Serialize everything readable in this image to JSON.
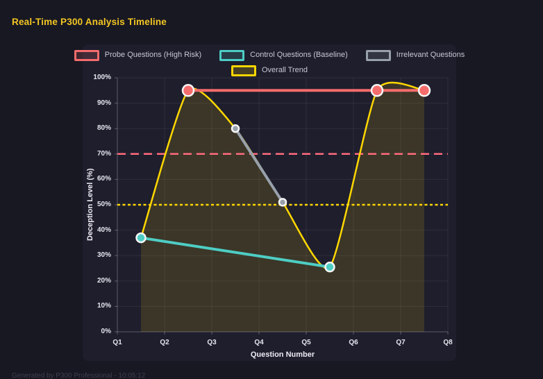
{
  "page": {
    "title": "Real-Time P300 Analysis Timeline",
    "footer": "Generated by P300 Professional - 10:05:12"
  },
  "colors": {
    "page_background": "#181823",
    "panel_background": "#1e1e2d",
    "title_accent": "#f3c622",
    "probe": "#f56c6c",
    "control": "#4ecdc4",
    "irrelevant": "#98a0aa",
    "trend": "#ffd700",
    "threshold_high": "#ff6b7d",
    "threshold_mid": "#ffd700",
    "point_border": "#f5f5f5"
  },
  "chart_data": {
    "type": "line",
    "title": "Real-Time P300 Analysis Timeline",
    "xlabel": "Question Number",
    "ylabel": "Deception Level (%)",
    "xlim": [
      1,
      8
    ],
    "ylim": [
      0,
      100
    ],
    "grid": true,
    "grid_color": "rgba(255,255,255,0.07)",
    "axis_color": "rgba(255,255,255,0.28)",
    "legend_position": "top",
    "legend_rows": [
      [
        0,
        1,
        2
      ],
      [
        3
      ]
    ],
    "x_ticks": [
      {
        "label": "Q1",
        "value": 1
      },
      {
        "label": "Q2",
        "value": 2
      },
      {
        "label": "Q3",
        "value": 3
      },
      {
        "label": "Q4",
        "value": 4
      },
      {
        "label": "Q5",
        "value": 5
      },
      {
        "label": "Q6",
        "value": 6
      },
      {
        "label": "Q7",
        "value": 7
      },
      {
        "label": "Q8",
        "value": 8
      }
    ],
    "y_ticks": [
      {
        "label": "0%",
        "value": 0
      },
      {
        "label": "10%",
        "value": 10
      },
      {
        "label": "20%",
        "value": 20
      },
      {
        "label": "30%",
        "value": 30
      },
      {
        "label": "40%",
        "value": 40
      },
      {
        "label": "50%",
        "value": 50
      },
      {
        "label": "60%",
        "value": 60
      },
      {
        "label": "70%",
        "value": 70
      },
      {
        "label": "80%",
        "value": 80
      },
      {
        "label": "90%",
        "value": 90
      },
      {
        "label": "100%",
        "value": 100
      }
    ],
    "series": [
      {
        "name": "Probe Questions (High Risk)",
        "color": "#f56c6c",
        "line_width": 4,
        "point_radius": 8,
        "smooth": false,
        "fill": false,
        "points": [
          [
            2.5,
            95
          ],
          [
            6.5,
            95
          ],
          [
            7.5,
            95
          ]
        ]
      },
      {
        "name": "Control Questions (Baseline)",
        "color": "#4ecdc4",
        "line_width": 4,
        "point_radius": 6.5,
        "smooth": false,
        "fill": false,
        "points": [
          [
            1.5,
            37
          ],
          [
            5.5,
            25.5
          ]
        ]
      },
      {
        "name": "Irrelevant Questions",
        "color": "#98a0aa",
        "line_width": 4,
        "point_radius": 5,
        "smooth": false,
        "fill": false,
        "points": [
          [
            3.5,
            80
          ],
          [
            4.5,
            51
          ]
        ]
      },
      {
        "name": "Overall Trend",
        "color": "#ffd700",
        "line_width": 2.5,
        "point_radius": 0,
        "smooth": true,
        "fill": true,
        "fill_opacity": 0.13,
        "points": [
          [
            1.5,
            37
          ],
          [
            2.5,
            95
          ],
          [
            3.5,
            80
          ],
          [
            4.5,
            51
          ],
          [
            5.5,
            25.5
          ],
          [
            6.5,
            95
          ],
          [
            7.5,
            95
          ]
        ]
      }
    ],
    "thresholds": [
      {
        "y": 70,
        "color": "#ff6b7d",
        "dash": "12 7",
        "line_width": 2.5
      },
      {
        "y": 50,
        "color": "#ffd700",
        "dash": "4 3.5",
        "line_width": 2.5
      }
    ]
  }
}
